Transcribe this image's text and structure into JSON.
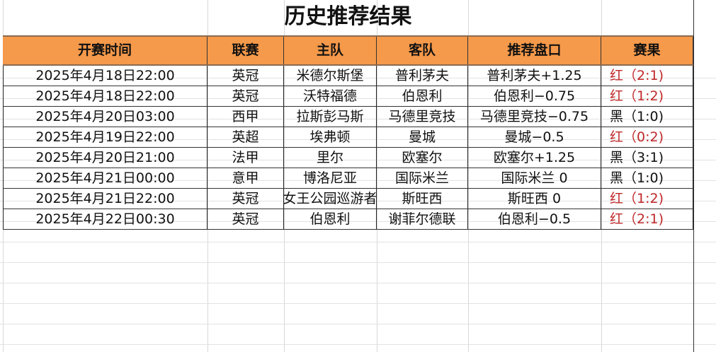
{
  "title": "历史推荐结果",
  "headers": [
    "开赛时间",
    "联赛",
    "主队",
    "客队",
    "推荐盘口",
    "赛果"
  ],
  "colors": {
    "header_bg": "#f5994a",
    "red": "#c0282a",
    "black": "#111111"
  },
  "rows": [
    {
      "time": "2025年4月18日22:00",
      "league": "英冠",
      "home": "米德尔斯堡",
      "away": "普利茅夫",
      "pick": "普利茅夫+1.25",
      "result": "红（2:1)",
      "result_color": "red"
    },
    {
      "time": "2025年4月18日22:00",
      "league": "英冠",
      "home": "沃特福德",
      "away": "伯恩利",
      "pick": "伯恩利−0.75",
      "result": "红（1:2)",
      "result_color": "red"
    },
    {
      "time": "2025年4月20日03:00",
      "league": "西甲",
      "home": "拉斯彭马斯",
      "away": "马德里竞技",
      "pick": "马德里竞技−0.75",
      "result": "黑（1:0)",
      "result_color": "black"
    },
    {
      "time": "2025年4月19日22:00",
      "league": "英超",
      "home": "埃弗顿",
      "away": "曼城",
      "pick": "曼城−0.5",
      "result": "红（0:2)",
      "result_color": "red"
    },
    {
      "time": "2025年4月20日21:00",
      "league": "法甲",
      "home": "里尔",
      "away": "欧塞尔",
      "pick": "欧塞尔+1.25",
      "result": "黑（3:1)",
      "result_color": "black"
    },
    {
      "time": "2025年4月21日00:00",
      "league": "意甲",
      "home": "博洛尼亚",
      "away": "国际米兰",
      "pick": "国际米兰 0",
      "result": "黑（1:0)",
      "result_color": "black"
    },
    {
      "time": "2025年4月21日22:00",
      "league": "英冠",
      "home": "女王公园巡游者",
      "away": "斯旺西",
      "pick": "斯旺西 0",
      "result": "红（1:2)",
      "result_color": "red"
    },
    {
      "time": "2025年4月22日00:30",
      "league": "英冠",
      "home": "伯恩利",
      "away": "谢菲尔德联",
      "pick": "伯恩利−0.5",
      "result": "红（2:1)",
      "result_color": "red"
    }
  ]
}
